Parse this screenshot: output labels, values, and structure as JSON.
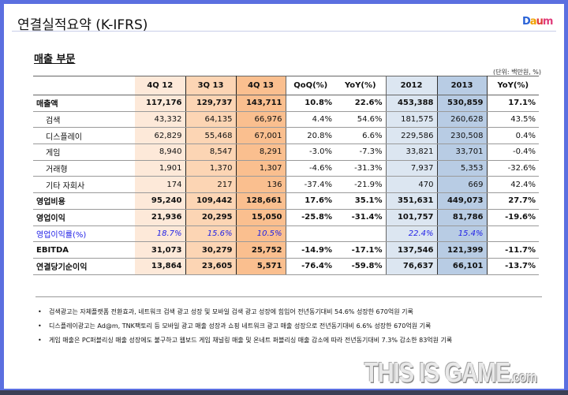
{
  "title": "연결실적요약 (K-IFRS)",
  "logo": [
    "D",
    "a",
    "u",
    "m"
  ],
  "section": "매출 부문",
  "unit": "(단위: 백만원, %)",
  "headers": [
    "",
    "4Q 12",
    "3Q 13",
    "4Q 13",
    "QoQ(%)",
    "YoY(%)",
    "2012",
    "2013",
    "YoY(%)"
  ],
  "rows": [
    {
      "label": "매출액",
      "values": [
        "117,176",
        "129,737",
        "143,711",
        "10.8%",
        "22.6%",
        "453,388",
        "530,859",
        "17.1%"
      ]
    },
    {
      "label": "검색",
      "values": [
        "43,332",
        "64,135",
        "66,976",
        "4.4%",
        "54.6%",
        "181,575",
        "260,628",
        "43.5%"
      ]
    },
    {
      "label": "디스플레이",
      "values": [
        "62,829",
        "55,468",
        "67,001",
        "20.8%",
        "6.6%",
        "229,586",
        "230,508",
        "0.4%"
      ]
    },
    {
      "label": "게임",
      "values": [
        "8,940",
        "8,547",
        "8,291",
        "-3.0%",
        "-7.3%",
        "33,821",
        "33,701",
        "-0.4%"
      ]
    },
    {
      "label": "거래형",
      "values": [
        "1,901",
        "1,370",
        "1,307",
        "-4.6%",
        "-31.3%",
        "7,937",
        "5,353",
        "-32.6%"
      ]
    },
    {
      "label": "기타 자회사",
      "values": [
        "174",
        "217",
        "136",
        "-37.4%",
        "-21.9%",
        "470",
        "669",
        "42.4%"
      ]
    },
    {
      "label": "영업비용",
      "values": [
        "95,240",
        "109,442",
        "128,661",
        "17.6%",
        "35.1%",
        "351,631",
        "449,073",
        "27.7%"
      ]
    },
    {
      "label": "영업이익",
      "values": [
        "21,936",
        "20,295",
        "15,050",
        "-25.8%",
        "-31.4%",
        "101,757",
        "81,786",
        "-19.6%"
      ]
    },
    {
      "label": "영업이익률(%)",
      "values": [
        "18.7%",
        "15.6%",
        "10.5%",
        "",
        "",
        "22.4%",
        "15.4%",
        ""
      ]
    },
    {
      "label": "EBITDA",
      "values": [
        "31,073",
        "30,279",
        "25,752",
        "-14.9%",
        "-17.1%",
        "137,546",
        "121,399",
        "-11.7%"
      ]
    },
    {
      "label": "연결당기순이익",
      "values": [
        "13,864",
        "23,605",
        "5,571",
        "-76.4%",
        "-59.8%",
        "76,637",
        "66,101",
        "-13.7%"
      ]
    }
  ],
  "notes": [
    "검색광고는 자체플랫폼 전환효과, 네트워크 검색 광고 성장 및 모바일 검색 광고 성장에 힘입어 전년동기대비 54.6% 성장한 670억원 기록",
    "디스플레이광고는  Ad@m, TNK팩토리 등 모바일 광고 매출 성장과 쇼핑 네트워크 광고 매출 성장으로  전년동기대비 6.6% 성장한 670억원 기록",
    "게임 매출은 PC퍼블리싱 매출 성장에도 불구하고 웹보드 게임 채널링 매출 및 온네트 퍼블리싱 매출 감소에 따라 전년동기대비 7.3% 감소한 83억원 기록"
  ],
  "watermark": {
    "main": "THIS IS GAME",
    "suffix": ".com"
  }
}
